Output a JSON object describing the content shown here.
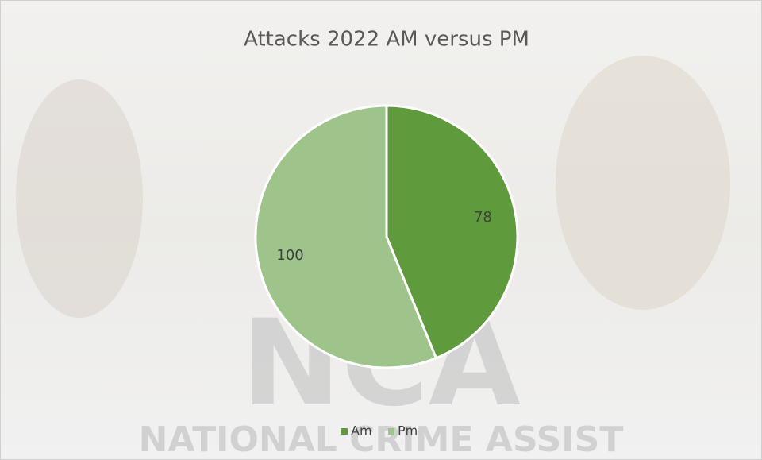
{
  "chart_data": {
    "type": "pie",
    "title": "Attacks 2022 AM versus PM",
    "categories": [
      "Am",
      "Pm"
    ],
    "values": [
      78,
      100
    ],
    "colors": [
      "#5f9a3c",
      "#9ec48b"
    ],
    "legend": "bottom",
    "background_text": {
      "logo": "NCA",
      "tagline": "NATIONAL CRIME ASSIST"
    }
  }
}
